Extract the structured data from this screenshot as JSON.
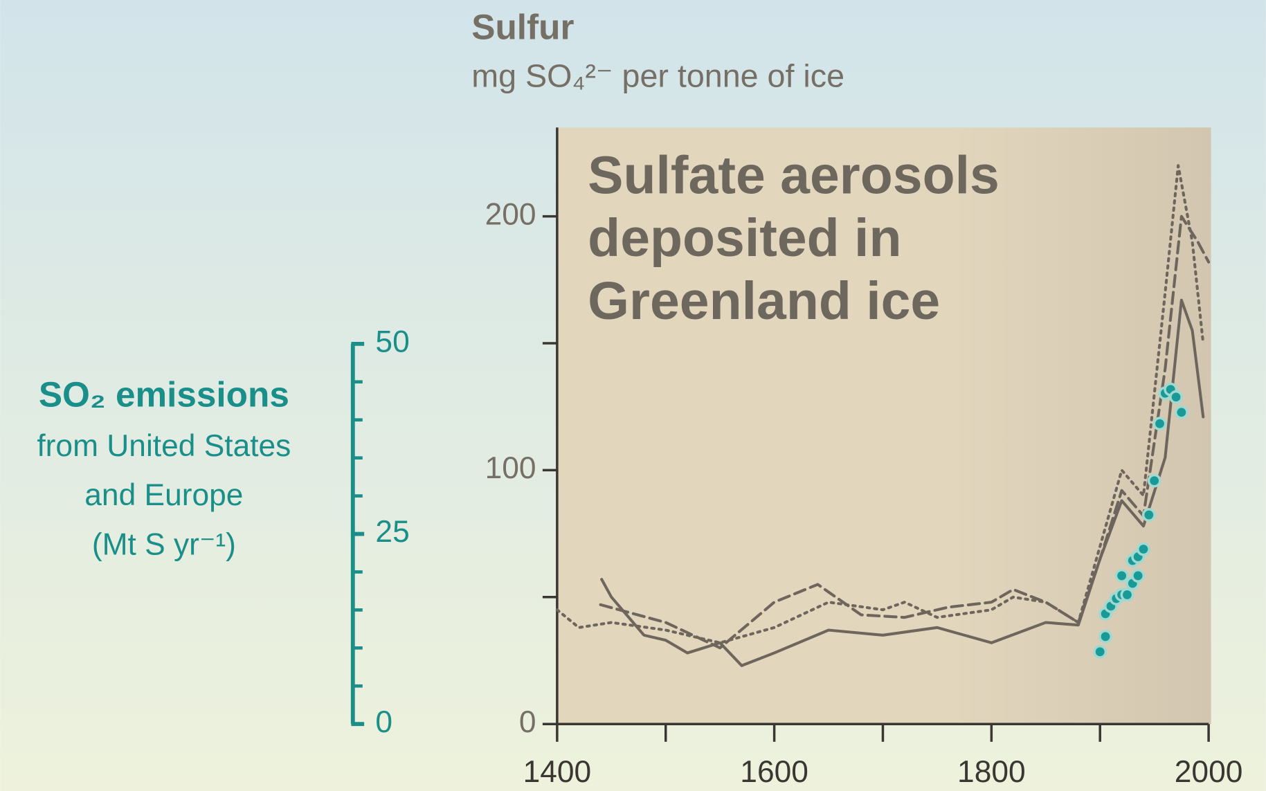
{
  "chart_data": {
    "type": "line",
    "title": [
      "Sulfate aerosols",
      "deposited in",
      "Greenland ice"
    ],
    "y_label": "Sulfur",
    "y_units": "mg SO₄²⁻ per tonne of ice",
    "y2_label": [
      "SO₂ emissions",
      "from United States",
      "and Europe",
      "(Mt S yr⁻¹)"
    ],
    "xlim": [
      1400,
      2000
    ],
    "xticks": [
      1400,
      1600,
      1800,
      2000
    ],
    "xminor": [
      1500,
      1700,
      1900
    ],
    "ylim": [
      0,
      235
    ],
    "yticks": [
      0,
      100,
      200
    ],
    "yminor": [
      50,
      150
    ],
    "y2lim": [
      0,
      50
    ],
    "y2ticks": [
      0,
      25,
      50
    ],
    "y2minor": [
      5,
      10,
      15,
      20,
      30,
      35,
      40,
      45
    ],
    "series": [
      {
        "type": "line",
        "style": "solid",
        "color": "#6e665c",
        "x": [
          1441,
          1450,
          1480,
          1500,
          1520,
          1550,
          1570,
          1600,
          1650,
          1700,
          1750,
          1800,
          1850,
          1880,
          1900,
          1920,
          1940,
          1960,
          1975,
          1985,
          1995
        ],
        "values": [
          57,
          50,
          35,
          33,
          28,
          32,
          23,
          28,
          37,
          35,
          38,
          32,
          40,
          39,
          65,
          88,
          78,
          105,
          167,
          155,
          121
        ]
      },
      {
        "type": "line",
        "style": "dashed",
        "color": "#6e665c",
        "x": [
          1440,
          1500,
          1550,
          1600,
          1640,
          1680,
          1720,
          1760,
          1800,
          1820,
          1850,
          1880,
          1900,
          1920,
          1940,
          1960,
          1975,
          1990,
          2000
        ],
        "values": [
          47,
          40,
          30,
          48,
          55,
          43,
          42,
          46,
          48,
          53,
          48,
          40,
          65,
          92,
          82,
          140,
          200,
          190,
          182
        ]
      },
      {
        "type": "line",
        "style": "dotted",
        "color": "#6e665c",
        "x": [
          1400,
          1420,
          1450,
          1500,
          1550,
          1600,
          1650,
          1700,
          1720,
          1750,
          1800,
          1820,
          1850,
          1880,
          1900,
          1920,
          1940,
          1960,
          1972,
          1985,
          1995
        ],
        "values": [
          45,
          38,
          40,
          37,
          32,
          38,
          48,
          45,
          48,
          42,
          45,
          50,
          48,
          40,
          70,
          100,
          90,
          170,
          220,
          190,
          150
        ]
      },
      {
        "type": "scatter",
        "axis": "y2",
        "color": "#1a9a96",
        "x": [
          1900,
          1905,
          1905,
          1910,
          1915,
          1920,
          1920,
          1925,
          1930,
          1930,
          1935,
          1935,
          1940,
          1945,
          1950,
          1955,
          1960,
          1965,
          1970,
          1975
        ],
        "values": [
          9.5,
          11.5,
          14.5,
          15.5,
          16.5,
          17,
          19.5,
          17,
          18.5,
          21.5,
          19.5,
          22,
          23,
          27.5,
          32,
          39.5,
          43.5,
          44,
          43,
          41
        ]
      }
    ]
  }
}
